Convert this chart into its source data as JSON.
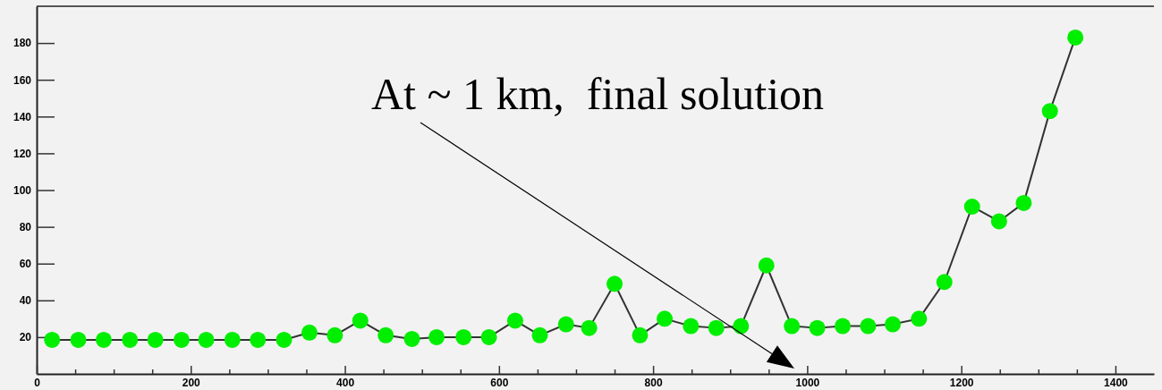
{
  "chart_data": {
    "type": "line",
    "xlim": [
      0,
      1450
    ],
    "ylim": [
      0,
      200
    ],
    "xticks": [
      0,
      {
        "value": 50,
        "label": null
      },
      {
        "value": 100,
        "label": null
      },
      {
        "value": 150,
        "label": null
      },
      200,
      {
        "value": 250,
        "label": null
      },
      {
        "value": 300,
        "label": null
      },
      {
        "value": 350,
        "label": null
      },
      400,
      {
        "value": 450,
        "label": null
      },
      {
        "value": 500,
        "label": null
      },
      {
        "value": 550,
        "label": null
      },
      600,
      {
        "value": 650,
        "label": null
      },
      {
        "value": 700,
        "label": null
      },
      {
        "value": 750,
        "label": null
      },
      800,
      {
        "value": 850,
        "label": null
      },
      {
        "value": 900,
        "label": null
      },
      {
        "value": 950,
        "label": null
      },
      1000,
      {
        "value": 1050,
        "label": null
      },
      {
        "value": 1100,
        "label": null
      },
      {
        "value": 1150,
        "label": null
      },
      1200,
      {
        "value": 1250,
        "label": null
      },
      {
        "value": 1300,
        "label": null
      },
      {
        "value": 1350,
        "label": null
      },
      1400
    ],
    "yticks": [
      20,
      40,
      60,
      80,
      100,
      120,
      140,
      160,
      180
    ],
    "marker": "circle",
    "annotations": [
      "At ~ 1 km,  final solution"
    ],
    "series": [
      {
        "color": "#00ee00",
        "x": [
          20,
          54,
          87,
          121,
          154,
          188,
          220,
          254,
          287,
          321,
          354,
          387,
          420,
          453,
          487,
          519,
          554,
          587,
          621,
          653,
          687,
          717,
          750,
          783,
          815,
          849,
          882,
          914,
          947,
          980,
          1013,
          1046,
          1079,
          1111,
          1145,
          1178,
          1214,
          1249,
          1281,
          1315,
          1348
        ],
        "values": [
          18.5,
          18.5,
          18.5,
          18.5,
          18.5,
          18.5,
          18.5,
          18.5,
          18.5,
          18.5,
          22.5,
          21,
          29,
          21,
          19,
          20,
          20,
          20,
          29,
          21,
          27,
          25,
          49,
          21,
          30,
          26,
          25,
          26,
          59,
          26,
          25,
          26,
          26,
          27,
          30,
          50,
          91,
          83,
          93,
          143,
          183
        ]
      }
    ]
  }
}
